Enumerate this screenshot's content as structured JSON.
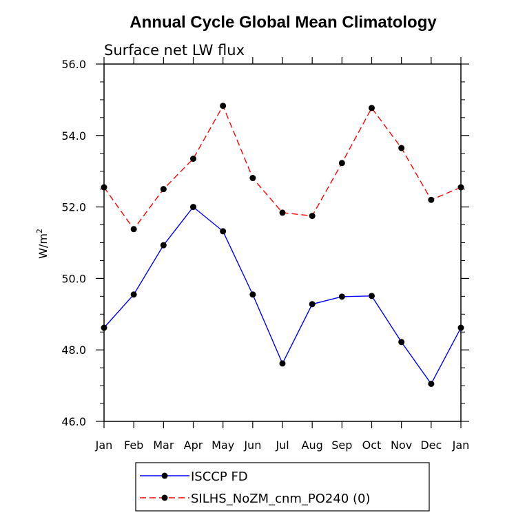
{
  "chart_data": {
    "type": "line",
    "title": "Annual Cycle Global Mean Climatology",
    "subtitle": "Surface net LW flux",
    "ylabel": "W/m",
    "ylabel_sup": "2",
    "xlabel": "",
    "ylim": [
      46.0,
      56.0
    ],
    "yticks": [
      46.0,
      48.0,
      50.0,
      52.0,
      54.0,
      56.0
    ],
    "ytick_labels": [
      "46.0",
      "48.0",
      "50.0",
      "52.0",
      "54.0",
      "56.0"
    ],
    "categories": [
      "Jan",
      "Feb",
      "Mar",
      "Apr",
      "May",
      "Jun",
      "Jul",
      "Aug",
      "Sep",
      "Oct",
      "Nov",
      "Dec",
      "Jan"
    ],
    "legend_position": "bottom",
    "grid": false,
    "series": [
      {
        "name": "ISCCP FD",
        "color": "#0000ff",
        "dash": "solid",
        "values": [
          48.62,
          49.55,
          50.93,
          52.0,
          51.32,
          49.55,
          47.62,
          49.28,
          49.49,
          49.51,
          48.22,
          47.05,
          48.62
        ]
      },
      {
        "name": "SILHS_NoZM_cnm_PO240 (0)",
        "color": "#ff0000",
        "dash": "dashed",
        "values": [
          52.55,
          51.38,
          52.5,
          53.35,
          54.83,
          52.81,
          51.84,
          51.75,
          53.23,
          54.77,
          53.65,
          52.2,
          52.55
        ]
      }
    ]
  }
}
